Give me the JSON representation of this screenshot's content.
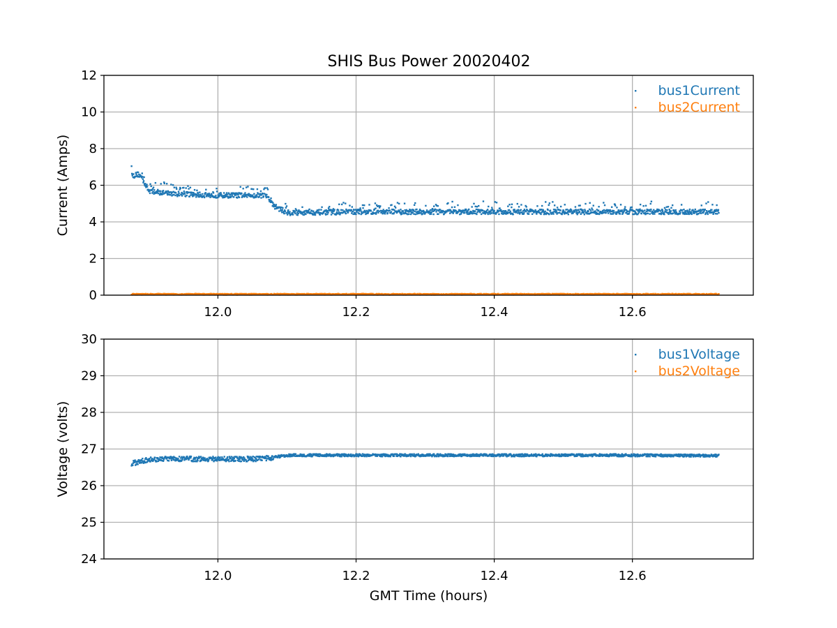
{
  "chart_data": [
    {
      "type": "scatter",
      "title": "SHIS Bus Power 20020402",
      "xlabel": "",
      "ylabel": "Current (Amps)",
      "xlim": [
        11.835,
        12.775
      ],
      "ylim": [
        0,
        12
      ],
      "xticks": [
        "12.0",
        "12.2",
        "12.4",
        "12.6"
      ],
      "yticks": [
        "0",
        "2",
        "4",
        "6",
        "8",
        "10",
        "12"
      ],
      "grid": true,
      "legend_position": "top-right",
      "series": [
        {
          "name": "bus1Current",
          "color": "#1f77b4",
          "x": [
            11.875,
            11.885,
            11.89,
            11.9,
            11.92,
            11.95,
            12.0,
            12.05,
            12.07,
            12.08,
            12.1,
            12.2,
            12.3,
            12.4,
            12.5,
            12.6,
            12.7,
            12.725
          ],
          "y": [
            6.5,
            6.6,
            6.4,
            5.7,
            5.6,
            5.5,
            5.45,
            5.45,
            5.45,
            4.9,
            4.5,
            4.55,
            4.55,
            4.55,
            4.55,
            4.55,
            4.55,
            4.55
          ]
        },
        {
          "name": "bus2Current",
          "color": "#ff7f0e",
          "x": [
            11.875,
            12.0,
            12.2,
            12.4,
            12.6,
            12.725
          ],
          "y": [
            0.05,
            0.05,
            0.05,
            0.05,
            0.05,
            0.05
          ]
        }
      ]
    },
    {
      "type": "scatter",
      "title": "",
      "xlabel": "GMT Time (hours)",
      "ylabel": "Voltage (volts)",
      "xlim": [
        11.835,
        12.775
      ],
      "ylim": [
        24,
        30
      ],
      "xticks": [
        "12.0",
        "12.2",
        "12.4",
        "12.6"
      ],
      "yticks": [
        "24",
        "25",
        "26",
        "27",
        "28",
        "29",
        "30"
      ],
      "grid": true,
      "legend_position": "top-right",
      "series": [
        {
          "name": "bus1Voltage",
          "color": "#1f77b4",
          "x": [
            11.875,
            11.885,
            11.9,
            11.95,
            12.0,
            12.05,
            12.075,
            12.09,
            12.1,
            12.2,
            12.3,
            12.4,
            12.5,
            12.6,
            12.7,
            12.725
          ],
          "y": [
            26.6,
            26.65,
            26.72,
            26.73,
            26.73,
            26.73,
            26.75,
            26.8,
            26.83,
            26.83,
            26.83,
            26.83,
            26.83,
            26.83,
            26.82,
            26.82
          ]
        },
        {
          "name": "bus2Voltage",
          "color": "#ff7f0e",
          "x": [],
          "y": []
        }
      ]
    }
  ]
}
